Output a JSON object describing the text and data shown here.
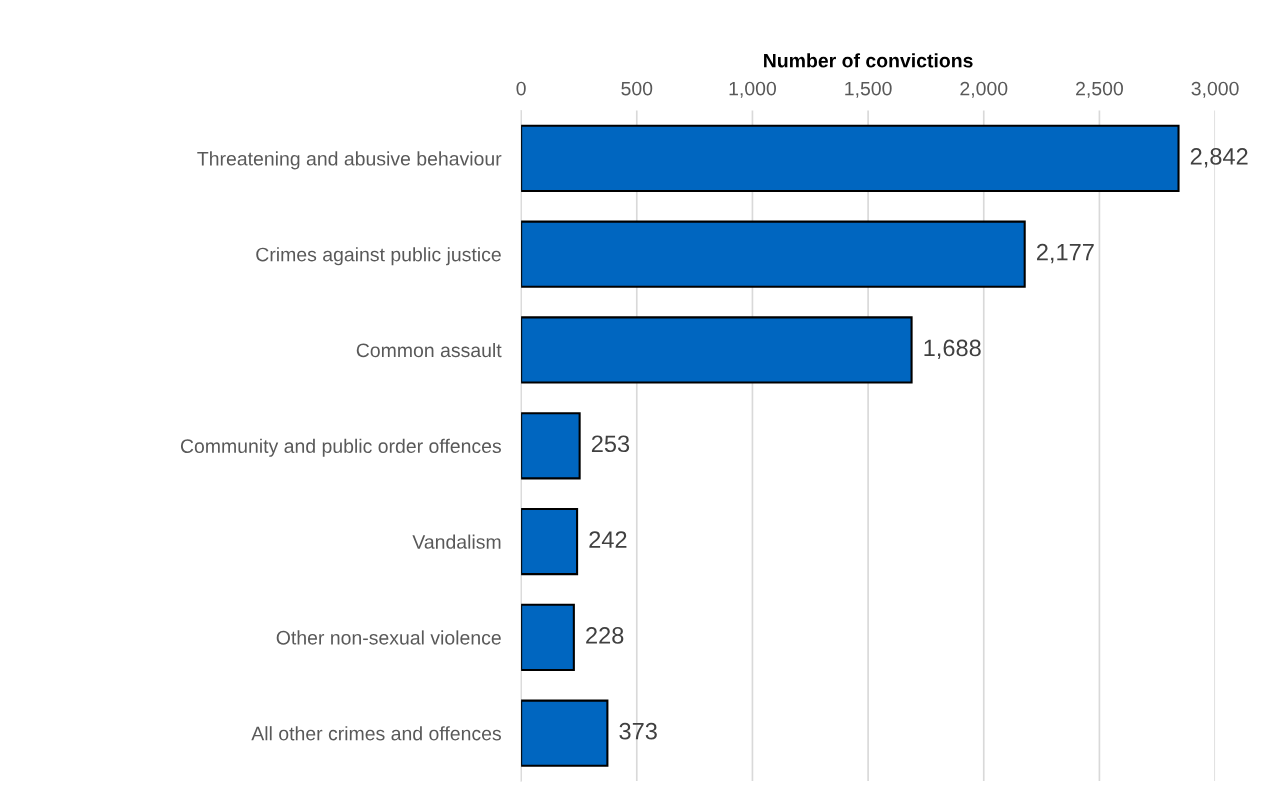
{
  "chart_data": {
    "type": "bar",
    "orientation": "horizontal",
    "xlabel": "Number of convictions",
    "categories": [
      "Threatening and abusive behaviour",
      "Crimes against public justice",
      "Common assault",
      "Community and public order offences",
      "Vandalism",
      "Other non-sexual violence",
      "All other crimes and offences"
    ],
    "values": [
      2842,
      2177,
      1688,
      253,
      242,
      228,
      373
    ],
    "value_labels": [
      "2,842",
      "2,177",
      "1,688",
      "253",
      "242",
      "228",
      "373"
    ],
    "color": "#0066c0",
    "xlim": [
      0,
      3000
    ],
    "xticks": [
      0,
      500,
      {
        "value": 1000,
        "label": "1,000"
      },
      {
        "value": 1500,
        "label": "1,500"
      },
      {
        "value": 2000,
        "label": "2,000"
      },
      {
        "value": 2500,
        "label": "2,500"
      },
      {
        "value": 3000,
        "label": "3,000"
      }
    ],
    "grid": "x"
  }
}
